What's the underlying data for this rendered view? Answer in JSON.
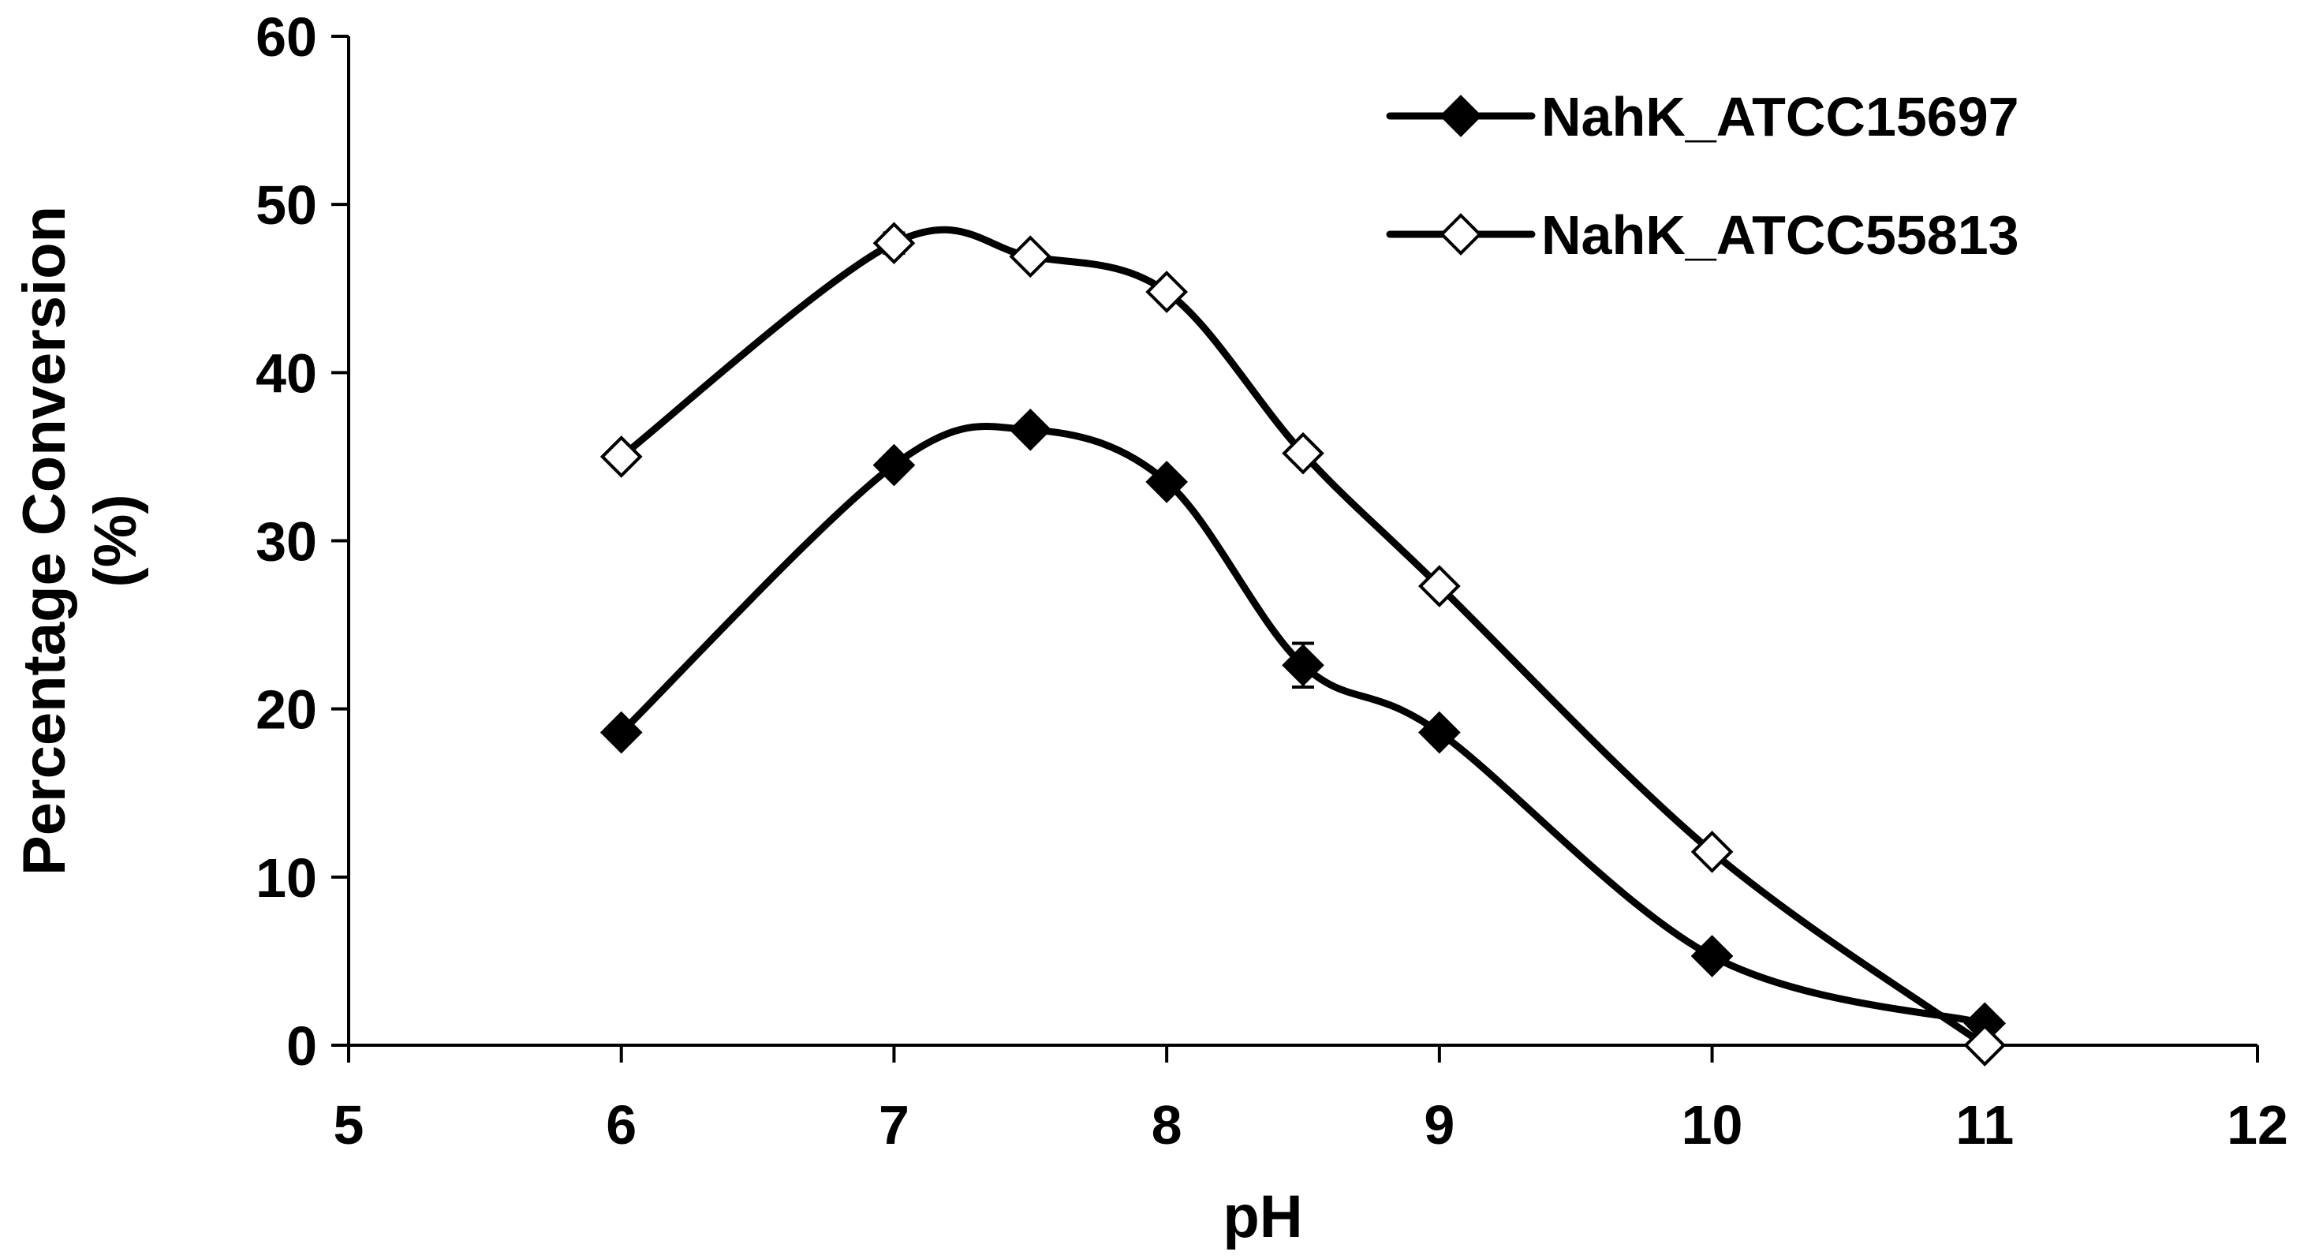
{
  "chart_data": {
    "type": "line",
    "title": "",
    "xlabel": "pH",
    "ylabel": "Percentage Conversion (%)",
    "ylabel_lines": [
      "Percentage Conversion",
      "(%)"
    ],
    "xlim": [
      5,
      12
    ],
    "ylim": [
      0,
      60
    ],
    "xticks": [
      5,
      6,
      7,
      8,
      9,
      10,
      11,
      12
    ],
    "yticks": [
      0,
      10,
      20,
      30,
      40,
      50,
      60
    ],
    "grid": false,
    "legend_position": "top-right",
    "line_style": "smoothed",
    "series": [
      {
        "name": "NahK_ATCC15697",
        "marker": "diamond-filled",
        "color": "#000000",
        "x": [
          6,
          7,
          7.5,
          8,
          8.5,
          9,
          10,
          11
        ],
        "y": [
          18.6,
          34.5,
          36.6,
          33.5,
          22.6,
          18.6,
          5.3,
          1.3
        ],
        "error": [
          0.4,
          0.5,
          0.5,
          0.5,
          1.3,
          0.4,
          0.4,
          0.3
        ]
      },
      {
        "name": "NahK_ATCC55813",
        "marker": "diamond-open",
        "color": "#000000",
        "x": [
          6,
          7,
          7.5,
          8,
          8.5,
          9,
          10,
          11
        ],
        "y": [
          35.0,
          47.7,
          46.9,
          44.8,
          35.2,
          27.3,
          11.5,
          0.0
        ],
        "error": [
          0.3,
          0.6,
          0.4,
          0.4,
          0.4,
          0.4,
          0.4,
          0.2
        ]
      }
    ]
  }
}
